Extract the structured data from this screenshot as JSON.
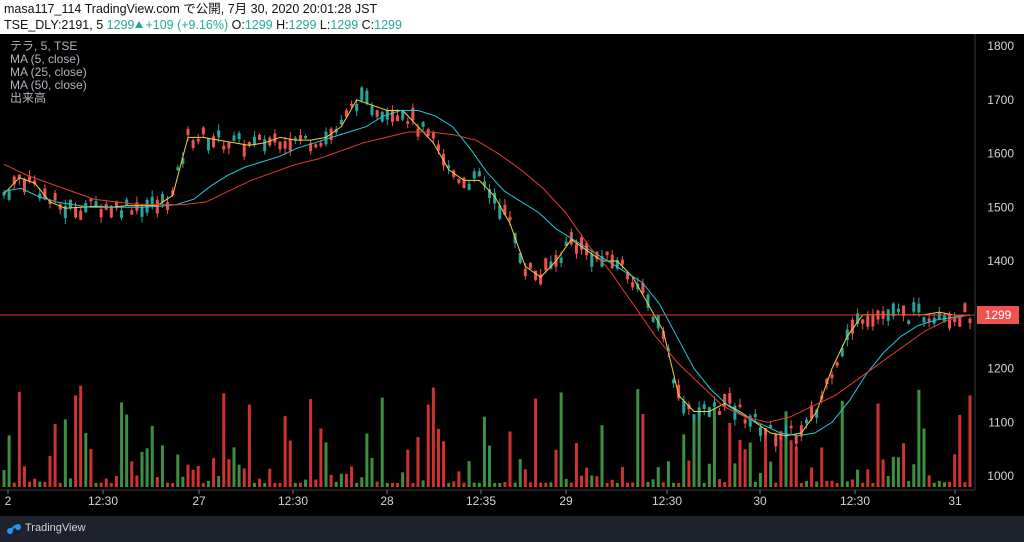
{
  "header": {
    "line1": "masa117_114 TradingView.com で公開, 7月 30, 2020 20:01:28 JST",
    "symbol": "TSE_DLY:2191, 5",
    "last": "1299",
    "change": "+109 (+9.16%)",
    "o_label": "O:",
    "o": "1299",
    "h_label": "H:",
    "h": "1299",
    "l_label": "L:",
    "l": "1299",
    "c_label": "C:",
    "c": "1299"
  },
  "legend": {
    "title": "テラ, 5, TSE",
    "ma5": "MA (5, close)",
    "ma25": "MA (25, close)",
    "ma50": "MA (50, close)",
    "volume": "出来高"
  },
  "price_tag": "1299",
  "footer": {
    "brand": "TradingView"
  },
  "colors": {
    "up": "#26a69a",
    "down": "#ef5350",
    "ma5": "#f4d03f",
    "ma25": "#26c6da",
    "ma50": "#e53935",
    "vol_up": "#43a047",
    "vol_down": "#e53935"
  },
  "chart_data": {
    "type": "candlestick",
    "title": "",
    "x_ticks": [
      "2",
      "12:30",
      "27",
      "12:30",
      "28",
      "12:35",
      "29",
      "12:30",
      "30",
      "12:30",
      "31"
    ],
    "y_ticks": [
      1000,
      1100,
      1200,
      1300,
      1400,
      1500,
      1600,
      1700,
      1800
    ],
    "ylim": [
      980,
      1820
    ],
    "last_price": 1299,
    "grid": false,
    "series": [
      {
        "name": "MA (5, close)",
        "values": [
          1525,
          1555,
          1545,
          1510,
          1498,
          1500,
          1502,
          1500,
          1503,
          1503,
          1503,
          1522,
          1630,
          1630,
          1625,
          1620,
          1615,
          1620,
          1630,
          1625,
          1625,
          1630,
          1650,
          1700,
          1690,
          1680,
          1680,
          1650,
          1620,
          1570,
          1550,
          1550,
          1520,
          1470,
          1390,
          1370,
          1400,
          1440,
          1420,
          1400,
          1400,
          1370,
          1320,
          1270,
          1150,
          1120,
          1120,
          1135,
          1120,
          1100,
          1080,
          1075,
          1080,
          1120,
          1200,
          1260,
          1300,
          1300,
          1300,
          1300,
          1300,
          1305,
          1299,
          1299
        ]
      },
      {
        "name": "MA (25, close)",
        "values": [
          1530,
          1535,
          1520,
          1510,
          1505,
          1500,
          1500,
          1500,
          1500,
          1502,
          1505,
          1515,
          1540,
          1560,
          1575,
          1585,
          1595,
          1610,
          1620,
          1630,
          1640,
          1650,
          1670,
          1680,
          1680,
          1670,
          1650,
          1610,
          1565,
          1530,
          1510,
          1490,
          1460,
          1440,
          1420,
          1400,
          1380,
          1360,
          1320,
          1260,
          1200,
          1160,
          1130,
          1110,
          1095,
          1080,
          1075,
          1080,
          1100,
          1140,
          1190,
          1230,
          1260,
          1280,
          1290,
          1295,
          1300
        ]
      },
      {
        "name": "MA (50, close)",
        "values": [
          1580,
          1560,
          1545,
          1530,
          1515,
          1510,
          1505,
          1505,
          1505,
          1510,
          1530,
          1550,
          1565,
          1580,
          1590,
          1605,
          1620,
          1630,
          1640,
          1640,
          1635,
          1625,
          1600,
          1570,
          1535,
          1490,
          1430,
          1380,
          1320,
          1260,
          1210,
          1170,
          1130,
          1110,
          1100,
          1110,
          1130,
          1150,
          1180,
          1210,
          1240,
          1270,
          1290,
          1300
        ]
      }
    ]
  }
}
